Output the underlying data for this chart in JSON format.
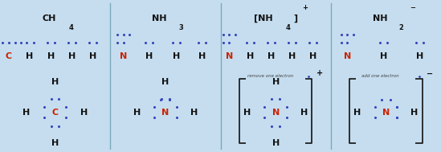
{
  "bg_color": "#c5ddef",
  "border_color": "#7aaabb",
  "black": "#111111",
  "red": "#cc2200",
  "dot_color": "#3344bb",
  "figsize": [
    5.49,
    1.89
  ],
  "dpi": 100,
  "panels": [
    {
      "title": "CH",
      "title_sub": "4",
      "title_suffix": "",
      "title_charge": "",
      "top_atoms": [
        "C",
        "H",
        "H",
        "H",
        "H"
      ],
      "top_colors": [
        "#cc2200",
        "#111111",
        "#111111",
        "#111111",
        "#111111"
      ],
      "top_dots": [
        [
          [
            0,
            0
          ],
          [
            1,
            0
          ],
          [
            2,
            0
          ],
          [
            3,
            0
          ]
        ],
        [
          [
            0,
            0
          ],
          [
            1,
            0
          ]
        ],
        [
          [
            0,
            0
          ],
          [
            1,
            0
          ]
        ],
        [
          [
            0,
            0
          ],
          [
            1,
            0
          ]
        ],
        [
          [
            0,
            0
          ],
          [
            1,
            0
          ]
        ]
      ],
      "lewis_arms": [
        "H",
        "H",
        "H",
        "H"
      ],
      "lewis_lone": 0,
      "note": "",
      "bracket": false,
      "charge": ""
    },
    {
      "title": "NH",
      "title_sub": "3",
      "title_suffix": "",
      "title_charge": "",
      "top_atoms": [
        "N",
        "H",
        "H",
        "H"
      ],
      "top_colors": [
        "#cc2200",
        "#111111",
        "#111111",
        "#111111"
      ],
      "top_dots": [
        [
          [
            0,
            1
          ],
          [
            1,
            1
          ],
          [
            2,
            1
          ],
          [
            0,
            0
          ],
          [
            1,
            0
          ]
        ],
        [
          [
            0,
            0
          ],
          [
            1,
            0
          ]
        ],
        [
          [
            0,
            0
          ],
          [
            1,
            0
          ]
        ],
        [
          [
            0,
            0
          ],
          [
            1,
            0
          ]
        ]
      ],
      "lewis_arms": [
        "H",
        "H",
        "H",
        null
      ],
      "lewis_lone": 1,
      "note": "",
      "bracket": false,
      "charge": ""
    },
    {
      "title": "[NH",
      "title_sub": "4",
      "title_suffix": "]",
      "title_charge": "+",
      "top_atoms": [
        "N",
        "H",
        "H",
        "H",
        "H"
      ],
      "top_colors": [
        "#cc2200",
        "#111111",
        "#111111",
        "#111111",
        "#111111"
      ],
      "top_dots": [
        [
          [
            0,
            1
          ],
          [
            1,
            1
          ],
          [
            2,
            1
          ],
          [
            0,
            0
          ],
          [
            1,
            0
          ]
        ],
        [
          [
            0,
            0
          ],
          [
            1,
            0
          ]
        ],
        [
          [
            0,
            0
          ],
          [
            1,
            0
          ]
        ],
        [
          [
            0,
            0
          ],
          [
            1,
            0
          ]
        ],
        [
          [
            0,
            0
          ],
          [
            1,
            0
          ]
        ]
      ],
      "lewis_arms": [
        "H",
        "H",
        "H",
        "H"
      ],
      "lewis_lone": 0,
      "note": "remove one electron",
      "bracket": true,
      "charge": "+"
    },
    {
      "title": "NH",
      "title_sub": "2",
      "title_suffix": "",
      "title_charge": "−",
      "top_atoms": [
        "N",
        "H",
        "H"
      ],
      "top_colors": [
        "#cc2200",
        "#111111",
        "#111111"
      ],
      "top_dots": [
        [
          [
            0,
            1
          ],
          [
            1,
            1
          ],
          [
            2,
            1
          ],
          [
            0,
            0
          ],
          [
            1,
            0
          ]
        ],
        [
          [
            0,
            0
          ],
          [
            1,
            0
          ]
        ],
        [
          [
            0,
            0
          ],
          [
            1,
            0
          ]
        ]
      ],
      "lewis_arms": [
        "H",
        "H",
        null,
        null
      ],
      "lewis_lone": 2,
      "note": "add one electron",
      "bracket": true,
      "charge": "−"
    }
  ]
}
